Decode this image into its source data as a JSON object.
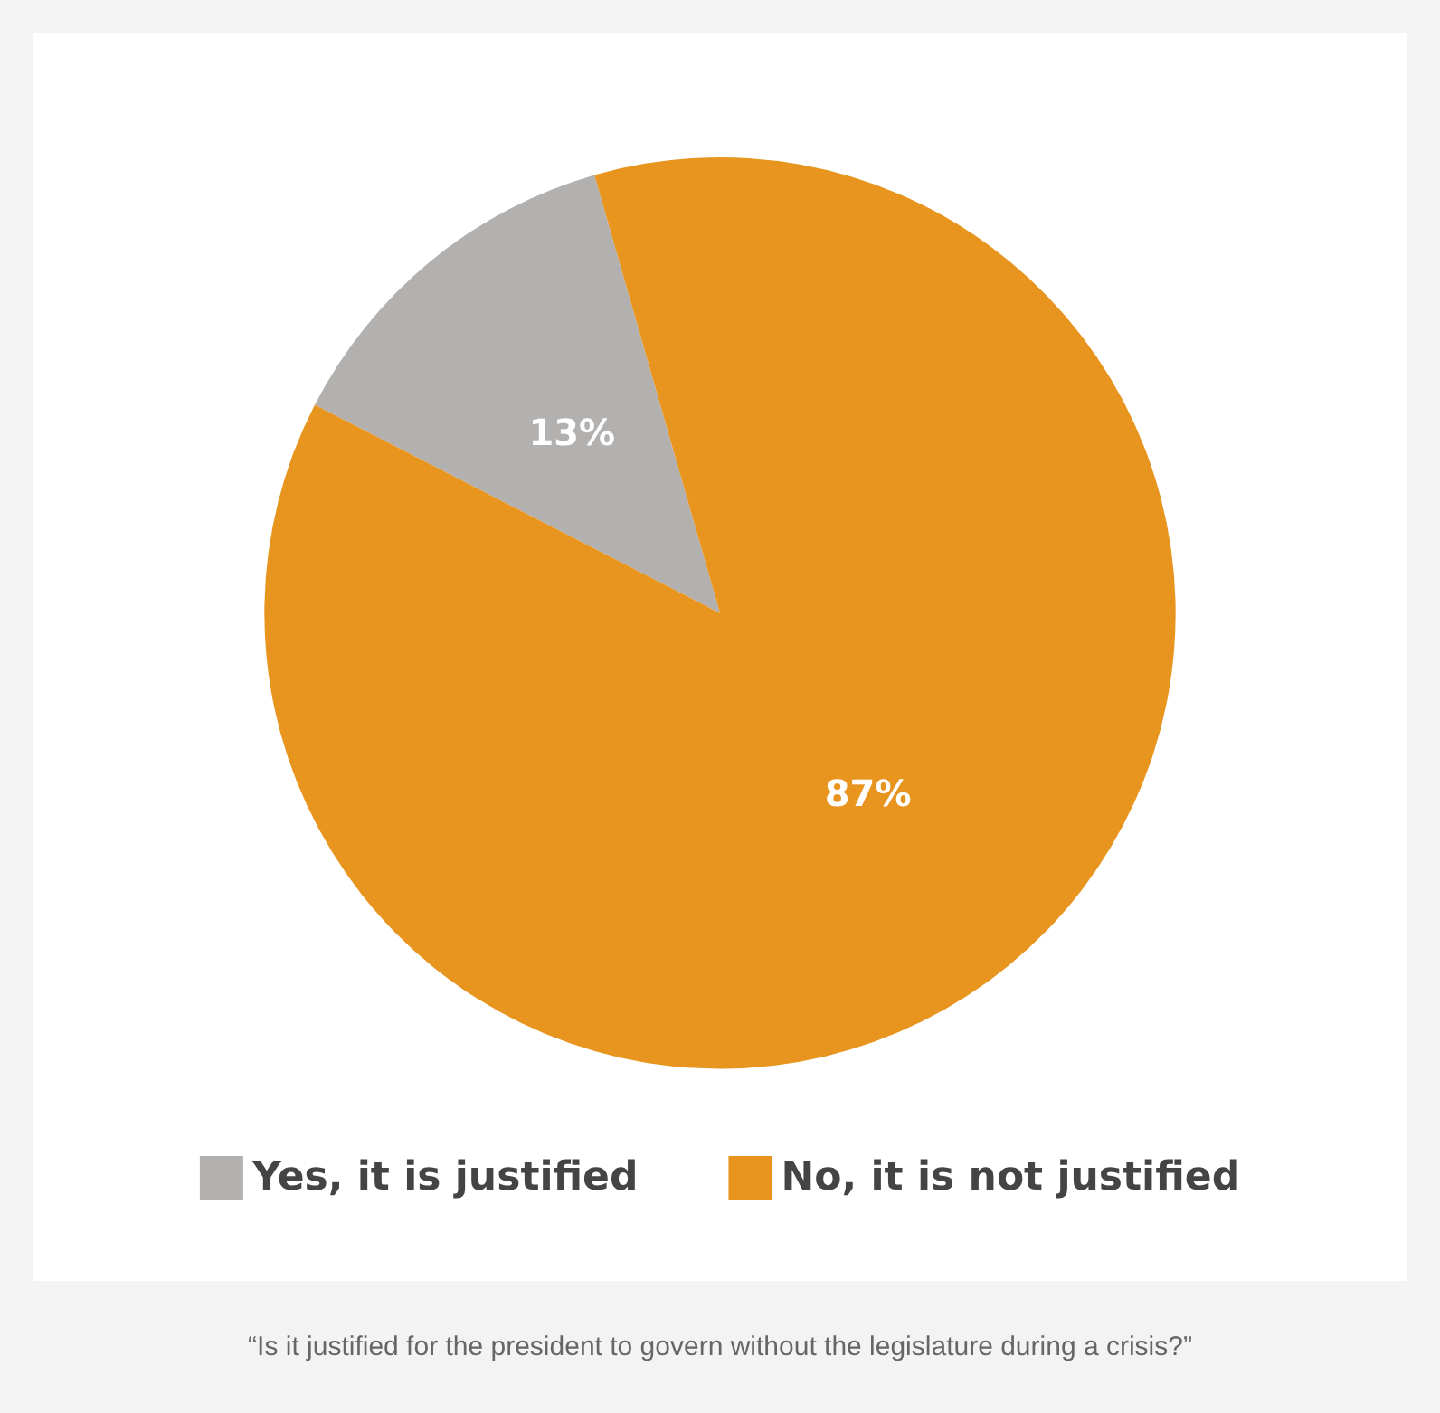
{
  "chart_data": {
    "type": "pie",
    "categories": [
      "Yes, it is justified",
      "No, it is not justified"
    ],
    "values": [
      13,
      87
    ],
    "colors": [
      "#b3b1af",
      "#e8951f"
    ],
    "value_labels": [
      "13%",
      "87%"
    ],
    "legend": "bottom",
    "annotations": [
      "“Is it justified for the president to govern without the legislature during a crisis?”"
    ]
  }
}
